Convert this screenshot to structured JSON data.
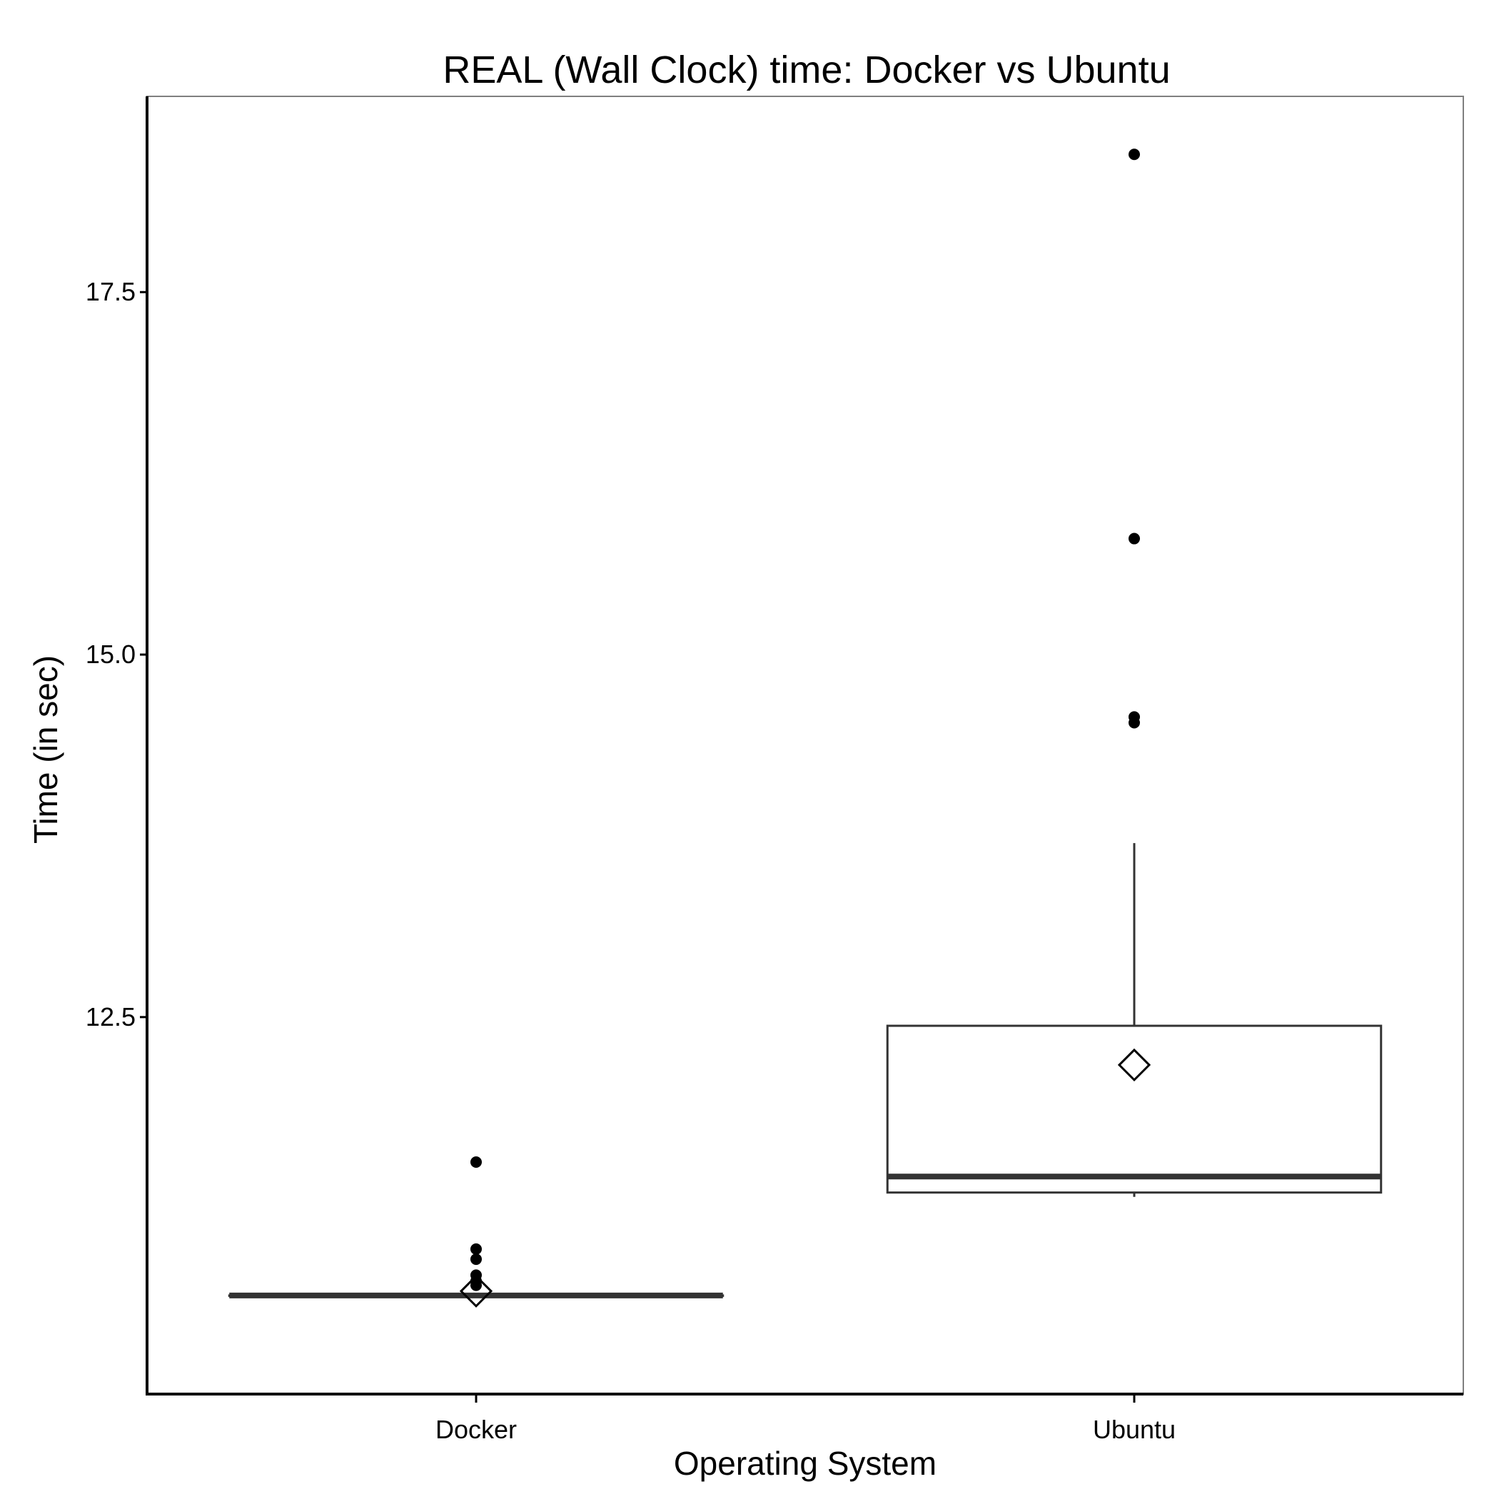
{
  "chart_data": {
    "type": "boxplot",
    "title": "REAL (Wall Clock) time: Docker vs Ubuntu",
    "xlabel": "Operating System",
    "ylabel": "Time (in sec)",
    "categories": [
      "Docker",
      "Ubuntu"
    ],
    "ylim": [
      9.9,
      18.85
    ],
    "yticks": [
      12.5,
      15.0,
      17.5
    ],
    "ytick_labels": [
      "12.5",
      "15.0",
      "17.5"
    ],
    "grid": false,
    "boxes": [
      {
        "category": "Docker",
        "min": 10.58,
        "q1": 10.58,
        "median": 10.58,
        "q3": 10.58,
        "max": 10.58,
        "mean": 10.61,
        "outliers": [
          11.5,
          10.9,
          10.83,
          10.72,
          10.68,
          10.65
        ]
      },
      {
        "category": "Ubuntu",
        "min": 11.26,
        "q1": 11.29,
        "median": 11.4,
        "q3": 12.44,
        "max": 13.7,
        "mean": 12.17,
        "outliers": [
          18.45,
          15.8,
          14.57,
          14.53
        ]
      }
    ]
  }
}
